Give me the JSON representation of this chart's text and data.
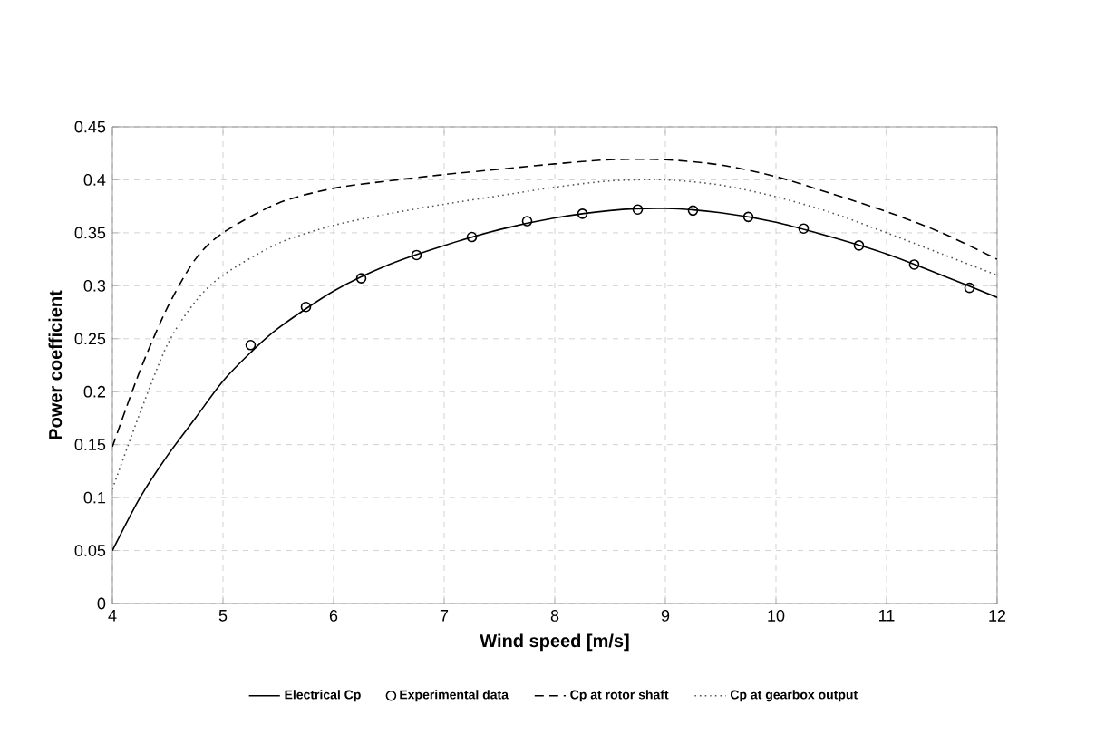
{
  "chart_data": {
    "type": "line",
    "xlabel": "Wind speed [m/s]",
    "ylabel": "Power coefficient",
    "xlim": [
      4,
      12
    ],
    "xticks": [
      4,
      5,
      6,
      7,
      8,
      9,
      10,
      11,
      12
    ],
    "ylim": [
      0,
      0.45
    ],
    "yticks": [
      0,
      0.05,
      0.1,
      0.15,
      0.2,
      0.25,
      0.3,
      0.35,
      0.4,
      0.45
    ],
    "grid": true,
    "legend": "bottom",
    "series": [
      {
        "name": "Electrical Cp",
        "color": "#000000",
        "line_style": "solid",
        "marker": "none",
        "x": [
          4,
          4.25,
          4.5,
          4.75,
          5,
          5.25,
          5.5,
          6,
          6.5,
          7,
          7.5,
          8,
          8.5,
          9,
          9.5,
          10,
          10.5,
          11,
          11.5,
          12
        ],
        "values": [
          0.05,
          0.1,
          0.14,
          0.175,
          0.21,
          0.237,
          0.26,
          0.295,
          0.32,
          0.338,
          0.353,
          0.364,
          0.371,
          0.373,
          0.369,
          0.36,
          0.346,
          0.33,
          0.31,
          0.289
        ]
      },
      {
        "name": "Experimental data",
        "type": "scatter",
        "color": "#000000",
        "marker": "circle",
        "x": [
          5.25,
          5.75,
          6.25,
          6.75,
          7.25,
          7.75,
          8.25,
          8.75,
          9.25,
          9.75,
          10.25,
          10.75,
          11.25,
          11.75
        ],
        "values": [
          0.244,
          0.28,
          0.307,
          0.329,
          0.346,
          0.361,
          0.368,
          0.372,
          0.371,
          0.365,
          0.354,
          0.338,
          0.32,
          0.298
        ]
      },
      {
        "name": "Cp at rotor shaft",
        "color": "#000000",
        "line_style": "dashed",
        "marker": "none",
        "x": [
          4,
          4.25,
          4.5,
          4.75,
          5,
          5.5,
          6,
          6.5,
          7,
          7.5,
          8,
          8.5,
          9,
          9.5,
          10,
          10.5,
          11,
          11.5,
          12
        ],
        "values": [
          0.148,
          0.22,
          0.28,
          0.325,
          0.35,
          0.378,
          0.392,
          0.399,
          0.405,
          0.41,
          0.415,
          0.419,
          0.419,
          0.414,
          0.403,
          0.387,
          0.37,
          0.35,
          0.325
        ]
      },
      {
        "name": "Cp at gearbox output",
        "color": "#555555",
        "line_style": "dotted",
        "marker": "none",
        "x": [
          4,
          4.25,
          4.5,
          4.75,
          5,
          5.5,
          6,
          6.5,
          7,
          7.5,
          8,
          8.5,
          9,
          9.5,
          10,
          10.5,
          11,
          11.5,
          12
        ],
        "values": [
          0.108,
          0.18,
          0.245,
          0.285,
          0.31,
          0.34,
          0.357,
          0.368,
          0.377,
          0.385,
          0.393,
          0.399,
          0.4,
          0.395,
          0.384,
          0.369,
          0.35,
          0.33,
          0.31
        ]
      }
    ]
  }
}
